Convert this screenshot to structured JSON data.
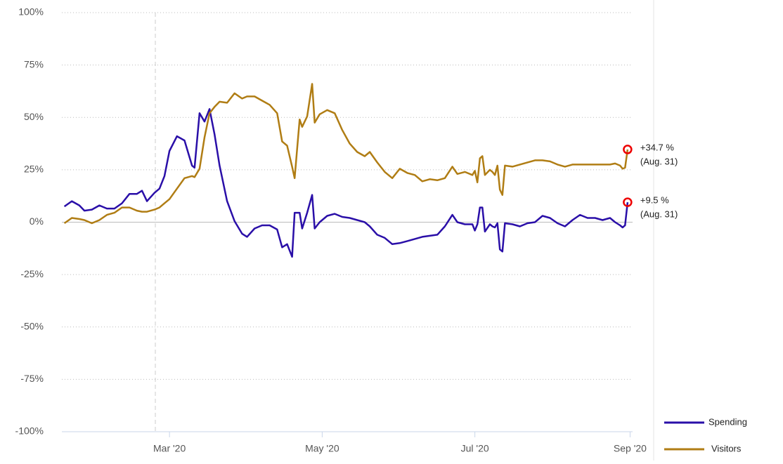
{
  "chart_data": {
    "type": "line",
    "x": [
      "2020-01-19",
      "2020-01-22",
      "2020-01-25",
      "2020-01-27",
      "2020-01-30",
      "2020-02-02",
      "2020-02-05",
      "2020-02-08",
      "2020-02-11",
      "2020-02-14",
      "2020-02-17",
      "2020-02-19",
      "2020-02-21",
      "2020-02-24",
      "2020-02-26",
      "2020-02-28",
      "2020-03-01",
      "2020-03-04",
      "2020-03-07",
      "2020-03-10",
      "2020-03-11",
      "2020-03-13",
      "2020-03-15",
      "2020-03-17",
      "2020-03-19",
      "2020-03-21",
      "2020-03-24",
      "2020-03-27",
      "2020-03-30",
      "2020-04-01",
      "2020-04-04",
      "2020-04-07",
      "2020-04-10",
      "2020-04-13",
      "2020-04-15",
      "2020-04-17",
      "2020-04-19",
      "2020-04-20",
      "2020-04-22",
      "2020-04-23",
      "2020-04-25",
      "2020-04-27",
      "2020-04-28",
      "2020-04-30",
      "2020-05-03",
      "2020-05-06",
      "2020-05-09",
      "2020-05-12",
      "2020-05-15",
      "2020-05-18",
      "2020-05-20",
      "2020-05-23",
      "2020-05-26",
      "2020-05-29",
      "2020-06-01",
      "2020-06-04",
      "2020-06-07",
      "2020-06-10",
      "2020-06-13",
      "2020-06-16",
      "2020-06-19",
      "2020-06-22",
      "2020-06-24",
      "2020-06-27",
      "2020-06-30",
      "2020-07-01",
      "2020-07-02",
      "2020-07-03",
      "2020-07-04",
      "2020-07-05",
      "2020-07-07",
      "2020-07-08",
      "2020-07-09",
      "2020-07-10",
      "2020-07-11",
      "2020-07-12",
      "2020-07-13",
      "2020-07-16",
      "2020-07-19",
      "2020-07-22",
      "2020-07-25",
      "2020-07-28",
      "2020-07-31",
      "2020-08-03",
      "2020-08-06",
      "2020-08-09",
      "2020-08-12",
      "2020-08-15",
      "2020-08-18",
      "2020-08-21",
      "2020-08-24",
      "2020-08-26",
      "2020-08-28",
      "2020-08-29",
      "2020-08-30",
      "2020-08-31"
    ],
    "series": [
      {
        "name": "Spending",
        "color": "#2a0fa8",
        "values": [
          7.5,
          10,
          8,
          5.5,
          6,
          8,
          6.5,
          6.5,
          9,
          13.5,
          13.5,
          15,
          10,
          14,
          16,
          22,
          34,
          41,
          39,
          27,
          26,
          52,
          48,
          54,
          42,
          27,
          10,
          0.5,
          -5.5,
          -7,
          -3,
          -1.5,
          -1.5,
          -3.5,
          -12,
          -10.5,
          -16.5,
          4.5,
          4.5,
          -3,
          4.5,
          13,
          -3,
          0,
          3,
          4,
          2.5,
          2,
          1,
          0,
          -2,
          -6,
          -7.5,
          -10.5,
          -10,
          -9,
          -8,
          -7,
          -6.5,
          -6,
          -2,
          3.5,
          0,
          -1,
          -1,
          -4,
          -1,
          7,
          7,
          -4.5,
          -1,
          -2,
          -2.5,
          -0.5,
          -13,
          -14,
          -0.5,
          -1,
          -2,
          -0.5,
          0,
          3,
          2,
          -0.5,
          -2,
          1,
          3.5,
          2,
          2,
          1,
          2,
          0,
          -1.5,
          -2.5,
          -1.5,
          9.5
        ]
      },
      {
        "name": "Visitors",
        "color": "#b07d14",
        "values": [
          -0.5,
          2,
          1.5,
          1,
          -0.5,
          1,
          3.5,
          4.5,
          7,
          7,
          5.5,
          5,
          5,
          6,
          7,
          9,
          11,
          16,
          21,
          22,
          21.5,
          25.5,
          40.5,
          52,
          55,
          57.5,
          57,
          61.5,
          59,
          60,
          60,
          58,
          56,
          52,
          38.5,
          36.5,
          26.5,
          21,
          49,
          45.5,
          50.5,
          66,
          47.5,
          51.5,
          53.5,
          52,
          44,
          37.5,
          33.5,
          31.5,
          33.5,
          28.5,
          24,
          21,
          25.5,
          23.5,
          22.5,
          19.5,
          20.5,
          20,
          21,
          26.5,
          23,
          24,
          22.5,
          24.5,
          19,
          30.5,
          31.5,
          22.5,
          25,
          24,
          22.5,
          27,
          15.5,
          13,
          27,
          26.5,
          27.5,
          28.5,
          29.5,
          29.5,
          29,
          27.5,
          26.5,
          27.5,
          27.5,
          27.5,
          27.5,
          27.5,
          27.5,
          28,
          27,
          25.5,
          26,
          34.7
        ]
      }
    ],
    "annotations": [
      {
        "series": 1,
        "text": "+34.7 %",
        "date": "(Aug. 31)"
      },
      {
        "series": 0,
        "text": "+9.5 %",
        "date": "(Aug. 31)"
      }
    ],
    "xlim": [
      "2020-01-18",
      "2020-09-02"
    ],
    "xticks": [
      {
        "value": "2020-03-01",
        "label": "Mar '20"
      },
      {
        "value": "2020-05-01",
        "label": "May '20"
      },
      {
        "value": "2020-07-01",
        "label": "Jul '20"
      },
      {
        "value": "2020-09-01",
        "label": "Sep '20"
      }
    ],
    "ylim": [
      -100,
      100
    ],
    "yticks": [
      {
        "value": -100,
        "label": "-100%"
      },
      {
        "value": -75,
        "label": "-75%"
      },
      {
        "value": -50,
        "label": "-50%"
      },
      {
        "value": -25,
        "label": "-25%"
      },
      {
        "value": 0,
        "label": "0%"
      },
      {
        "value": 25,
        "label": "25%"
      },
      {
        "value": 50,
        "label": "50%"
      },
      {
        "value": 75,
        "label": "75%"
      },
      {
        "value": 100,
        "label": "100%"
      }
    ],
    "grid": true,
    "legend": "lower right"
  }
}
